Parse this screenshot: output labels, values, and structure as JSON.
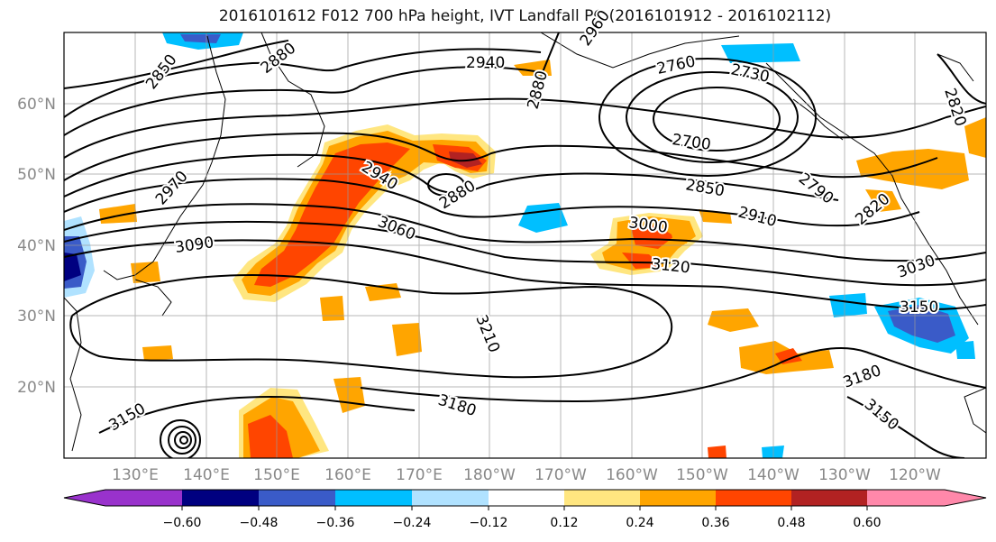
{
  "title": "2016101612 F012 700 hPa height, IVT Landfall PC (2016101912 - 2016102112)",
  "lat_labels": [
    "60°N",
    "50°N",
    "40°N",
    "30°N",
    "20°N"
  ],
  "lon_labels": [
    "130°E",
    "140°E",
    "150°E",
    "160°E",
    "170°E",
    "180°W",
    "170°W",
    "160°W",
    "150°W",
    "140°W",
    "130°W",
    "120°W"
  ],
  "colorbar": {
    "ticks": [
      "−0.60",
      "−0.48",
      "−0.36",
      "−0.24",
      "−0.12",
      "0.12",
      "0.24",
      "0.36",
      "0.48",
      "0.60"
    ],
    "colors": [
      "#9932CC",
      "#000080",
      "#3A5BC8",
      "#00BFFF",
      "#B0E2FF",
      "#FFFFFF",
      "#FFE680",
      "#FFA500",
      "#FF4500",
      "#B22222",
      "#FF88AA"
    ]
  },
  "contour_labels": [
    "2850",
    "2880",
    "2940",
    "2960",
    "2880",
    "2760",
    "2730",
    "2820",
    "2700",
    "2790",
    "2850",
    "2910",
    "2820",
    "2970",
    "2940",
    "2880",
    "3060",
    "3000",
    "3120",
    "3090",
    "3030",
    "3150",
    "3210",
    "3180",
    "3180",
    "3150",
    "3150"
  ]
}
